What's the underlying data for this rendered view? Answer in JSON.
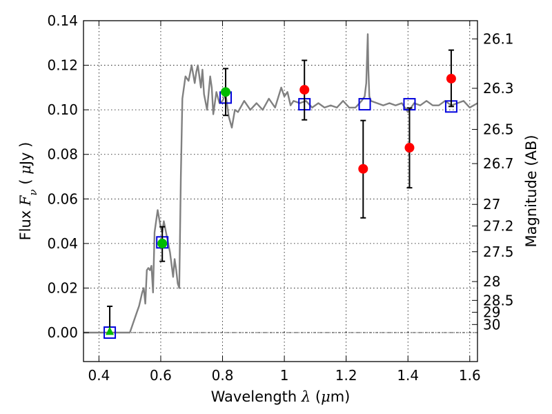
{
  "chart_data": {
    "type": "scatter",
    "xlabel": {
      "prefix": "Wavelength  ",
      "symbol": "λ",
      "unit_open": " (",
      "unit_mu": "μ",
      "unit_rest": "m)"
    },
    "ylabel": {
      "prefix": "Flux  ",
      "symbol": "F",
      "sub": "ν",
      "unit_open": "  ( ",
      "unit_mu": "μ",
      "unit_rest": "Jy )"
    },
    "y2label": "Magnitude (AB)",
    "xlim": [
      0.35,
      1.625
    ],
    "ylim": [
      -0.013,
      0.14
    ],
    "x_ticks": [
      "0.4",
      "0.6",
      "0.8",
      "1",
      "1.2",
      "1.4",
      "1.6"
    ],
    "x_tick_values": [
      0.4,
      0.6,
      0.8,
      1.0,
      1.2,
      1.4,
      1.6
    ],
    "y_ticks": [
      "0.00",
      "0.02",
      "0.04",
      "0.06",
      "0.08",
      "0.10",
      "0.12",
      "0.14"
    ],
    "y_tick_values": [
      0.0,
      0.02,
      0.04,
      0.06,
      0.08,
      0.1,
      0.12,
      0.14
    ],
    "y2_ticks": [
      {
        "label": "26.1",
        "mag": 26.1
      },
      {
        "label": "26.3",
        "mag": 26.3
      },
      {
        "label": "26.5",
        "mag": 26.5
      },
      {
        "label": "26.7",
        "mag": 26.7
      },
      {
        "label": "27",
        "mag": 27.0
      },
      {
        "label": "27.2",
        "mag": 27.2
      },
      {
        "label": "27.5",
        "mag": 27.5
      },
      {
        "label": "28",
        "mag": 28.0
      },
      {
        "label": "28.5",
        "mag": 28.5
      },
      {
        "label": "29",
        "mag": 29.0
      },
      {
        "label": "30",
        "mag": 30.0
      }
    ],
    "grid": true,
    "zero_line": true,
    "colors": {
      "model": "#808080",
      "observed_red": "#ff0000",
      "observed_green": "#00bb00",
      "model_box": "#0000dd",
      "errorbar": "#000000"
    },
    "series": [
      {
        "kind": "line",
        "x": [
          0.35,
          0.5,
          0.52,
          0.53,
          0.54,
          0.545,
          0.55,
          0.555,
          0.56,
          0.565,
          0.57,
          0.575,
          0.58,
          0.59,
          0.6,
          0.605,
          0.61,
          0.62,
          0.63,
          0.64,
          0.645,
          0.65,
          0.655,
          0.66,
          0.665,
          0.67,
          0.68,
          0.69,
          0.7,
          0.71,
          0.715,
          0.72,
          0.73,
          0.735,
          0.74,
          0.75,
          0.76,
          0.765,
          0.77,
          0.78,
          0.79,
          0.8,
          0.81,
          0.82,
          0.83,
          0.84,
          0.85,
          0.87,
          0.89,
          0.91,
          0.93,
          0.95,
          0.97,
          0.99,
          1.0,
          1.01,
          1.02,
          1.03,
          1.05,
          1.07,
          1.09,
          1.11,
          1.13,
          1.15,
          1.17,
          1.19,
          1.21,
          1.23,
          1.25,
          1.26,
          1.265,
          1.27,
          1.272,
          1.275,
          1.28,
          1.3,
          1.32,
          1.34,
          1.36,
          1.38,
          1.4,
          1.42,
          1.44,
          1.46,
          1.48,
          1.5,
          1.52,
          1.54,
          1.56,
          1.58,
          1.6,
          1.625
        ],
        "y": [
          0.0,
          0.0,
          0.008,
          0.012,
          0.018,
          0.02,
          0.013,
          0.028,
          0.029,
          0.028,
          0.03,
          0.018,
          0.045,
          0.055,
          0.047,
          0.045,
          0.05,
          0.043,
          0.036,
          0.025,
          0.033,
          0.028,
          0.022,
          0.02,
          0.07,
          0.105,
          0.115,
          0.113,
          0.12,
          0.112,
          0.117,
          0.12,
          0.11,
          0.118,
          0.107,
          0.1,
          0.115,
          0.11,
          0.098,
          0.108,
          0.103,
          0.104,
          0.107,
          0.097,
          0.092,
          0.1,
          0.099,
          0.104,
          0.1,
          0.103,
          0.1,
          0.105,
          0.101,
          0.11,
          0.106,
          0.108,
          0.102,
          0.104,
          0.103,
          0.104,
          0.101,
          0.103,
          0.101,
          0.102,
          0.101,
          0.104,
          0.101,
          0.101,
          0.104,
          0.106,
          0.112,
          0.134,
          0.118,
          0.106,
          0.104,
          0.103,
          0.102,
          0.103,
          0.102,
          0.103,
          0.099,
          0.103,
          0.102,
          0.104,
          0.102,
          0.102,
          0.104,
          0.102,
          0.103,
          0.104,
          0.101,
          0.103
        ]
      },
      {
        "name": "",
        "kind": "points",
        "points": [
          {
            "x": 0.81,
            "y": 0.108,
            "color": "#00bb00",
            "marker": "circle",
            "yerr_low": 0.0975,
            "yerr_high": 0.1185
          },
          {
            "x": 1.065,
            "y": 0.109,
            "color": "#ff0000",
            "marker": "circle",
            "yerr_low": 0.0955,
            "yerr_high": 0.1222
          },
          {
            "x": 1.255,
            "y": 0.0735,
            "color": "#ff0000",
            "marker": "circle",
            "yerr_low": 0.0515,
            "yerr_high": 0.0952
          },
          {
            "x": 1.405,
            "y": 0.083,
            "color": "#ff0000",
            "marker": "circle",
            "yerr_low": 0.065,
            "yerr_high": 0.1008
          },
          {
            "x": 1.54,
            "y": 0.114,
            "color": "#ff0000",
            "marker": "circle",
            "yerr_low": 0.1015,
            "yerr_high": 0.1268
          },
          {
            "x": 0.605,
            "y": 0.04,
            "color": "#00bb00",
            "marker": "circle",
            "yerr_low": 0.032,
            "yerr_high": 0.0475
          },
          {
            "x": 0.435,
            "y": 0.0005,
            "color": "#00bb00",
            "marker": "triangle",
            "yerr_low": 0.0,
            "yerr_high": 0.0118
          }
        ]
      },
      {
        "kind": "model_boxes",
        "points": [
          {
            "x": 0.435,
            "y": 0.0
          },
          {
            "x": 0.605,
            "y": 0.0405
          },
          {
            "x": 0.81,
            "y": 0.1055
          },
          {
            "x": 1.065,
            "y": 0.1025
          },
          {
            "x": 1.26,
            "y": 0.1025
          },
          {
            "x": 1.405,
            "y": 0.1025
          },
          {
            "x": 1.54,
            "y": 0.1015
          }
        ]
      }
    ]
  }
}
